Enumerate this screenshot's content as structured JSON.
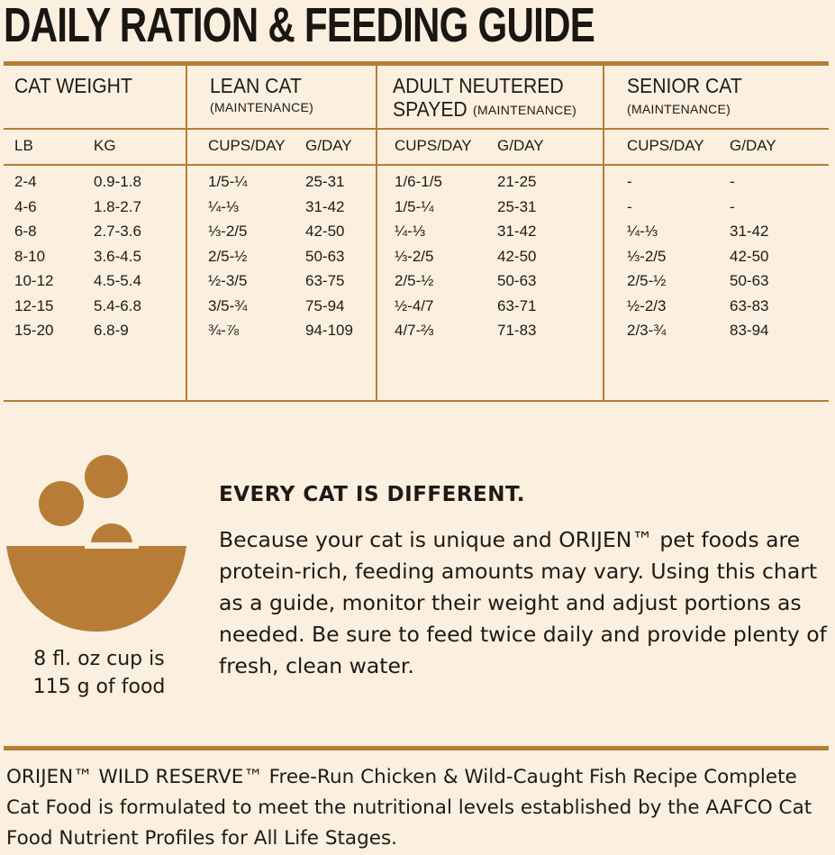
{
  "page_title": "DAILY RATION & FEEDING GUIDE",
  "table": {
    "groups": [
      {
        "title": "CAT WEIGHT",
        "subtitle": ""
      },
      {
        "title": "LEAN CAT",
        "subtitle": "(MAINTENANCE)"
      },
      {
        "title": "ADULT NEUTERED",
        "title2": "SPAYED",
        "subtitle": "(MAINTENANCE)"
      },
      {
        "title": "SENIOR CAT",
        "subtitle": "(MAINTENANCE)"
      }
    ],
    "columns": [
      "LB",
      "KG",
      "CUPS/DAY",
      "G/DAY",
      "CUPS/DAY",
      "G/DAY",
      "CUPS/DAY",
      "G/DAY"
    ],
    "rows": [
      [
        "2-4",
        "0.9-1.8",
        "1/5-¼",
        "25-31",
        "1/6-1/5",
        "21-25",
        "-",
        "-"
      ],
      [
        "4-6",
        "1.8-2.7",
        "¼-⅓",
        "31-42",
        "1/5-¼",
        "25-31",
        "-",
        "-"
      ],
      [
        "6-8",
        "2.7-3.6",
        "⅓-2/5",
        "42-50",
        "¼-⅓",
        "31-42",
        "¼-⅓",
        "31-42"
      ],
      [
        "8-10",
        "3.6-4.5",
        "2/5-½",
        "50-63",
        "⅓-2/5",
        "42-50",
        "⅓-2/5",
        "42-50"
      ],
      [
        "10-12",
        "4.5-5.4",
        "½-3/5",
        "63-75",
        "2/5-½",
        "50-63",
        "2/5-½",
        "50-63"
      ],
      [
        "12-15",
        "5.4-6.8",
        "3/5-¾",
        "75-94",
        "½-4/7",
        "63-71",
        "½-2/3",
        "63-83"
      ],
      [
        "15-20",
        "6.8-9",
        "¾-⅞",
        "94-109",
        "4/7-⅔",
        "71-83",
        "2/3-¾",
        "83-94"
      ]
    ]
  },
  "info": {
    "heading": "EVERY CAT IS DIFFERENT.",
    "body": "Because your cat is unique and ORIJEN™ pet foods are protein-rich, feeding amounts may vary. Using this chart as a guide, monitor their weight and adjust portions as needed. Be sure to feed twice daily and provide plenty of fresh, clean water."
  },
  "cup_note": {
    "line1": "8 fl. oz cup is",
    "line2": "115 g of food"
  },
  "footer": "ORIJEN™ WILD RESERVE™ Free-Run Chicken & Wild-Caught Fish Recipe Complete Cat Food is formulated to meet the nutritional levels established by the AAFCO Cat Food Nutrient Profiles for All Life Stages.",
  "colors": {
    "background": "#fbefe0",
    "accent": "#b77d36",
    "text": "#1e1a16"
  },
  "icons": [
    "bowl-with-kibble-icon"
  ]
}
